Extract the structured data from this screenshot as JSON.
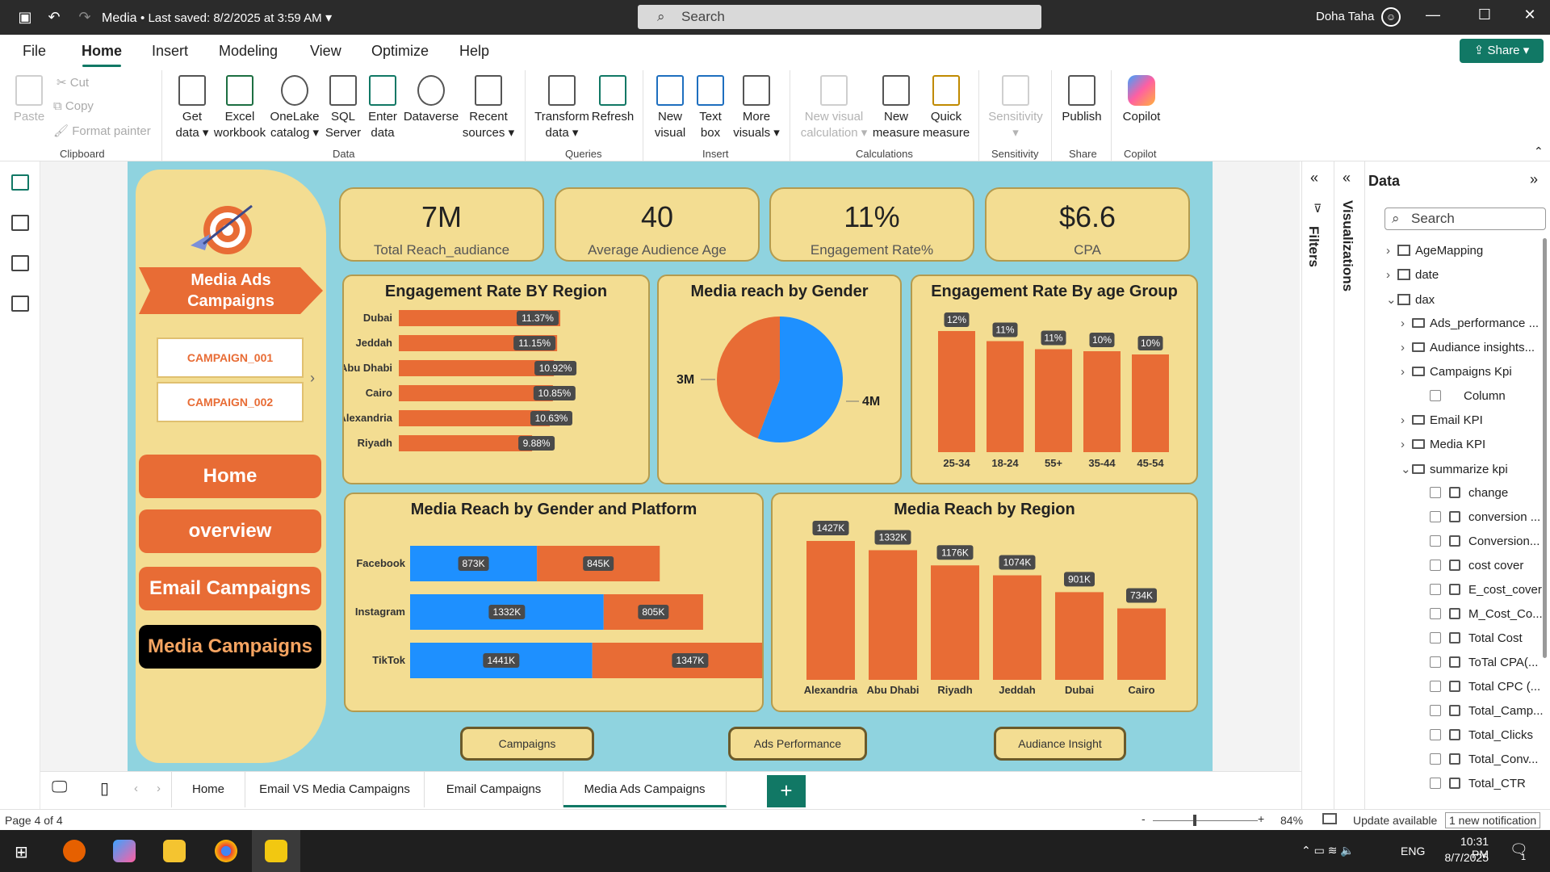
{
  "titlebar": {
    "file_title": "Media",
    "saved": "• Last saved: 8/2/2025 at 3:59 AM",
    "search": "Search",
    "user": "Doha Taha"
  },
  "menu": [
    "File",
    "Home",
    "Insert",
    "Modeling",
    "View",
    "Optimize",
    "Help"
  ],
  "share": "Share",
  "ribbon": {
    "clipboard": {
      "paste": "Paste",
      "cut": "Cut",
      "copy": "Copy",
      "format": "Format painter",
      "group": "Clipboard"
    },
    "data": {
      "get": "Get data",
      "excel": "Excel workbook",
      "onelake": "OneLake catalog",
      "sql": "SQL Server",
      "enter": "Enter data",
      "dataverse": "Dataverse",
      "recent": "Recent sources",
      "group": "Data"
    },
    "queries": {
      "transform": "Transform data",
      "refresh": "Refresh",
      "group": "Queries"
    },
    "insert": {
      "newvisual": "New visual",
      "textbox": "Text box",
      "more": "More visuals",
      "group": "Insert"
    },
    "calc": {
      "newcalc": "New visual calculation",
      "newmeasure": "New measure",
      "quick": "Quick measure",
      "group": "Calculations"
    },
    "sensitivity": {
      "label": "Sensitivity",
      "group": "Sensitivity"
    },
    "share": {
      "publish": "Publish",
      "group": "Share"
    },
    "copilot": {
      "label": "Copilot",
      "group": "Copilot"
    }
  },
  "report": {
    "nav_title": "Media Ads Campaigns",
    "campaigns": [
      "CAMPAIGN_001",
      "CAMPAIGN_002"
    ],
    "nav_buttons": [
      "Home",
      "overview",
      "Email Campaigns",
      "Media Campaigns"
    ],
    "kpis": [
      {
        "value": "7M",
        "label": "Total Reach_audiance"
      },
      {
        "value": "40",
        "label": "Average Audience Age"
      },
      {
        "value": "11%",
        "label": "Engagement Rate%"
      },
      {
        "value": "$6.6",
        "label": "CPA"
      }
    ],
    "bottom_buttons": [
      "Campaigns",
      "Ads Performance",
      "Audiance Insight"
    ]
  },
  "chart_data": [
    {
      "type": "bar",
      "orientation": "horizontal",
      "title": "Engagement Rate BY Region",
      "categories": [
        "Dubai",
        "Jeddah",
        "Abu Dhabi",
        "Cairo",
        "Alexandria",
        "Riyadh"
      ],
      "values": [
        11.37,
        11.15,
        10.92,
        10.85,
        10.63,
        9.88
      ],
      "labels": [
        "11.37%",
        "11.15%",
        "10.92%",
        "10.85%",
        "10.63%",
        "9.88%"
      ],
      "color": "#e86c35"
    },
    {
      "type": "pie",
      "title": "Media reach by Gender",
      "categories": [
        "3M",
        "4M"
      ],
      "values": [
        3.1,
        3.9
      ],
      "colors": [
        "#e86c35",
        "#1e90ff"
      ]
    },
    {
      "type": "bar",
      "title": "Engagement Rate By age Group",
      "categories": [
        "25-34",
        "18-24",
        "55+",
        "35-44",
        "45-54"
      ],
      "values": [
        12,
        11,
        11,
        10,
        10
      ],
      "labels": [
        "12%",
        "11%",
        "11%",
        "10%",
        "10%"
      ],
      "color": "#e86c35"
    },
    {
      "type": "bar",
      "orientation": "horizontal",
      "stacked": true,
      "title": "Media Reach by Gender and Platform",
      "categories": [
        "Facebook",
        "Instagram",
        "TikTok"
      ],
      "series": [
        {
          "values": [
            873,
            1332,
            1441
          ],
          "labels": [
            "873K",
            "1332K",
            "1441K"
          ],
          "color": "#1e90ff"
        },
        {
          "values": [
            845,
            805,
            1347
          ],
          "labels": [
            "845K",
            "805K",
            "1347K"
          ],
          "color": "#e86c35"
        }
      ]
    },
    {
      "type": "bar",
      "title": "Media Reach by Region",
      "categories": [
        "Alexandria",
        "Abu Dhabi",
        "Riyadh",
        "Jeddah",
        "Dubai",
        "Cairo"
      ],
      "values": [
        1427,
        1332,
        1176,
        1074,
        901,
        734
      ],
      "labels": [
        "1427K",
        "1332K",
        "1176K",
        "1074K",
        "901K",
        "734K"
      ],
      "color": "#e86c35"
    }
  ],
  "panes": {
    "filters": "Filters",
    "visualizations": "Visualizations",
    "data_title": "Data",
    "data_search": "Search"
  },
  "fields": [
    {
      "label": "AgeMapping",
      "kind": "table",
      "level": 0,
      "chev": "›"
    },
    {
      "label": "date",
      "kind": "table",
      "level": 0,
      "chev": "›"
    },
    {
      "label": "dax",
      "kind": "table",
      "level": 0,
      "chev": "⌄"
    },
    {
      "label": "Ads_performance ...",
      "kind": "folder",
      "level": 1,
      "chev": "›"
    },
    {
      "label": "Audiance insights...",
      "kind": "folder",
      "level": 1,
      "chev": "›"
    },
    {
      "label": "Campaigns Kpi",
      "kind": "folder",
      "level": 1,
      "chev": "›"
    },
    {
      "label": "Column",
      "kind": "check",
      "level": 2,
      "chev": ""
    },
    {
      "label": "Email KPI",
      "kind": "folder",
      "level": 1,
      "chev": "›"
    },
    {
      "label": "Media KPI",
      "kind": "folder",
      "level": 1,
      "chev": "›"
    },
    {
      "label": "summarize kpi",
      "kind": "folder",
      "level": 1,
      "chev": "⌄"
    },
    {
      "label": "change",
      "kind": "measure",
      "level": 2,
      "chev": ""
    },
    {
      "label": "conversion ...",
      "kind": "measure",
      "level": 2,
      "chev": ""
    },
    {
      "label": "Conversion...",
      "kind": "measure",
      "level": 2,
      "chev": ""
    },
    {
      "label": "cost cover",
      "kind": "measure",
      "level": 2,
      "chev": ""
    },
    {
      "label": "E_cost_cover",
      "kind": "measure",
      "level": 2,
      "chev": ""
    },
    {
      "label": "M_Cost_Co...",
      "kind": "measure",
      "level": 2,
      "chev": ""
    },
    {
      "label": "Total Cost",
      "kind": "measure",
      "level": 2,
      "chev": ""
    },
    {
      "label": "ToTal CPA(...",
      "kind": "measure",
      "level": 2,
      "chev": ""
    },
    {
      "label": "Total CPC (...",
      "kind": "measure",
      "level": 2,
      "chev": ""
    },
    {
      "label": "Total_Camp...",
      "kind": "measure",
      "level": 2,
      "chev": ""
    },
    {
      "label": "Total_Clicks",
      "kind": "measure",
      "level": 2,
      "chev": ""
    },
    {
      "label": "Total_Conv...",
      "kind": "measure",
      "level": 2,
      "chev": ""
    },
    {
      "label": "Total_CTR",
      "kind": "measure",
      "level": 2,
      "chev": ""
    }
  ],
  "tabs": [
    "Home",
    "Email VS Media Campaigns",
    "Email Campaigns",
    "Media Ads Campaigns"
  ],
  "status": {
    "page": "Page 4 of 4",
    "zoom": "84%",
    "update": "Update available",
    "notification": "1 new notification"
  },
  "taskbar": {
    "lang": "ENG",
    "time": "10:31 PM",
    "date": "8/7/2025",
    "badge": "1"
  }
}
